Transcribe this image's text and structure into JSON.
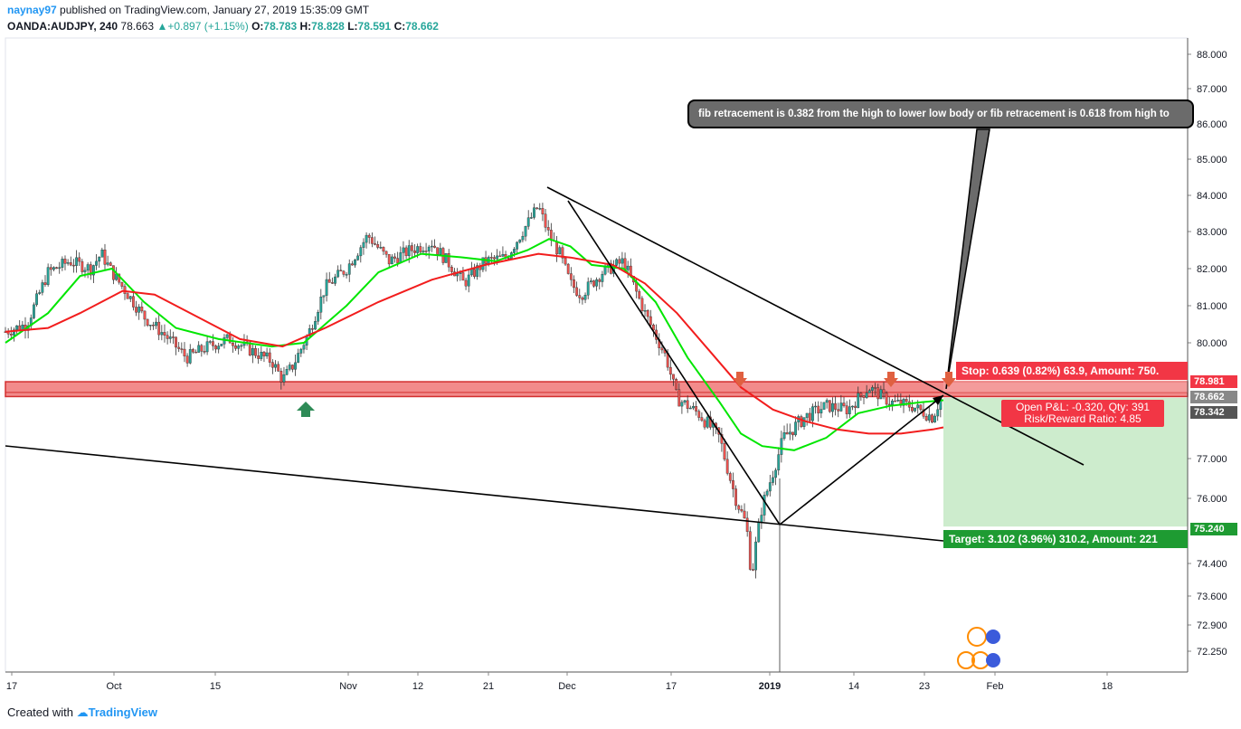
{
  "header": {
    "user": "naynay97",
    "published": " published on TradingView.com, January 27, 2019 15:35:09 GMT",
    "symbol": "OANDA:AUDJPY, 240",
    "last": "78.663",
    "change": "+0.897 (+1.15%)",
    "o_label": "O:",
    "o_value": "78.783",
    "h_label": "H:",
    "h_value": "78.828",
    "l_label": "L:",
    "l_value": "78.591",
    "c_label": "C:",
    "c_value": "78.662"
  },
  "footer": {
    "created": "Created with",
    "brand": "TradingView"
  },
  "annotations": {
    "callout": "fib retracement is 0.382 from the high to lower low body or fib retracement is 0.618 from high to",
    "stop": "Stop: 0.639 (0.82%) 63.9, Amount: 750.",
    "pnl_line1": "Open P&L: -0.320, Qty: 391",
    "pnl_line2": "Risk/Reward Ratio: 4.85",
    "target": "Target: 3.102 (3.96%) 310.2, Amount: 221"
  },
  "price_labels": {
    "stop_price": "78.981",
    "entry_price": "78.662",
    "last_price": "78.342",
    "target_price": "75.240"
  },
  "colors": {
    "bull": "#26a69a",
    "bear": "#ef5350",
    "ma_fast": "#00e600",
    "ma_slow": "#f21d1d",
    "zone": "#f28b8b",
    "target_zone": "#cdeccd",
    "stop_color": "#f23645",
    "target_color": "#1e9b32"
  },
  "chart_data": {
    "type": "candlestick",
    "symbol": "OANDA:AUDJPY",
    "interval": "240",
    "y_ticks": [
      "88.000",
      "87.000",
      "86.000",
      "85.000",
      "84.000",
      "83.000",
      "82.000",
      "81.000",
      "80.000",
      "77.000",
      "76.000",
      "74.400",
      "73.600",
      "72.900",
      "72.250"
    ],
    "y_range": [
      72.0,
      88.2
    ],
    "x_ticks": [
      "17",
      "Oct",
      "15",
      "Nov",
      "12",
      "21",
      "Dec",
      "17",
      "2019",
      "14",
      "23",
      "Feb",
      "18"
    ],
    "series_path": [
      [
        0,
        80.3
      ],
      [
        4,
        80.5
      ],
      [
        8,
        81.9
      ],
      [
        12,
        82.2
      ],
      [
        16,
        82.0
      ],
      [
        18,
        82.4
      ],
      [
        20,
        81.9
      ],
      [
        22,
        81.5
      ],
      [
        26,
        80.7
      ],
      [
        30,
        80.2
      ],
      [
        34,
        79.6
      ],
      [
        38,
        79.9
      ],
      [
        42,
        80.1
      ],
      [
        46,
        79.8
      ],
      [
        50,
        79.5
      ],
      [
        52,
        79.0
      ],
      [
        54,
        79.4
      ],
      [
        57,
        80.3
      ],
      [
        60,
        81.5
      ],
      [
        64,
        82.0
      ],
      [
        68,
        82.9
      ],
      [
        72,
        82.2
      ],
      [
        76,
        82.5
      ],
      [
        80,
        82.7
      ],
      [
        84,
        82.0
      ],
      [
        86,
        81.6
      ],
      [
        90,
        82.2
      ],
      [
        94,
        82.3
      ],
      [
        97,
        83.0
      ],
      [
        100,
        83.7
      ],
      [
        102,
        82.9
      ],
      [
        104,
        82.4
      ],
      [
        106,
        81.6
      ],
      [
        108,
        81.3
      ],
      [
        112,
        81.9
      ],
      [
        116,
        82.2
      ],
      [
        120,
        80.8
      ],
      [
        124,
        79.6
      ],
      [
        126,
        78.5
      ],
      [
        130,
        78.1
      ],
      [
        134,
        77.5
      ],
      [
        137,
        76.0
      ],
      [
        139,
        75.3
      ],
      [
        140,
        74.1
      ],
      [
        142,
        75.8
      ],
      [
        146,
        77.5
      ],
      [
        150,
        78.0
      ],
      [
        154,
        78.3
      ],
      [
        158,
        78.2
      ],
      [
        162,
        78.8
      ],
      [
        166,
        78.4
      ],
      [
        170,
        78.3
      ],
      [
        174,
        78.0
      ],
      [
        176,
        78.662
      ]
    ],
    "ma_fast_path": [
      [
        0,
        80.0
      ],
      [
        8,
        80.8
      ],
      [
        14,
        81.8
      ],
      [
        20,
        82.0
      ],
      [
        26,
        81.1
      ],
      [
        32,
        80.4
      ],
      [
        40,
        80.1
      ],
      [
        50,
        79.9
      ],
      [
        56,
        80.0
      ],
      [
        64,
        81.0
      ],
      [
        70,
        81.9
      ],
      [
        78,
        82.4
      ],
      [
        86,
        82.3
      ],
      [
        92,
        82.2
      ],
      [
        98,
        82.5
      ],
      [
        102,
        82.8
      ],
      [
        106,
        82.6
      ],
      [
        110,
        82.1
      ],
      [
        116,
        82.0
      ],
      [
        122,
        81.1
      ],
      [
        128,
        79.6
      ],
      [
        134,
        78.4
      ],
      [
        138,
        77.6
      ],
      [
        142,
        77.3
      ],
      [
        148,
        77.2
      ],
      [
        154,
        77.5
      ],
      [
        160,
        78.1
      ],
      [
        166,
        78.3
      ],
      [
        172,
        78.4
      ],
      [
        176,
        78.45
      ]
    ],
    "ma_slow_path": [
      [
        0,
        80.3
      ],
      [
        8,
        80.4
      ],
      [
        14,
        80.8
      ],
      [
        22,
        81.4
      ],
      [
        28,
        81.3
      ],
      [
        36,
        80.7
      ],
      [
        44,
        80.1
      ],
      [
        52,
        79.9
      ],
      [
        60,
        80.4
      ],
      [
        70,
        81.1
      ],
      [
        80,
        81.7
      ],
      [
        90,
        82.1
      ],
      [
        100,
        82.4
      ],
      [
        106,
        82.3
      ],
      [
        114,
        82.1
      ],
      [
        120,
        81.6
      ],
      [
        126,
        80.8
      ],
      [
        132,
        79.8
      ],
      [
        138,
        78.8
      ],
      [
        144,
        78.2
      ],
      [
        150,
        77.9
      ],
      [
        156,
        77.7
      ],
      [
        162,
        77.6
      ],
      [
        168,
        77.6
      ],
      [
        174,
        77.7
      ],
      [
        176,
        77.75
      ]
    ],
    "zone": [
      78.55,
      78.95
    ],
    "stop_level": 78.981,
    "entry_level": 78.662,
    "target_level": 75.24
  }
}
